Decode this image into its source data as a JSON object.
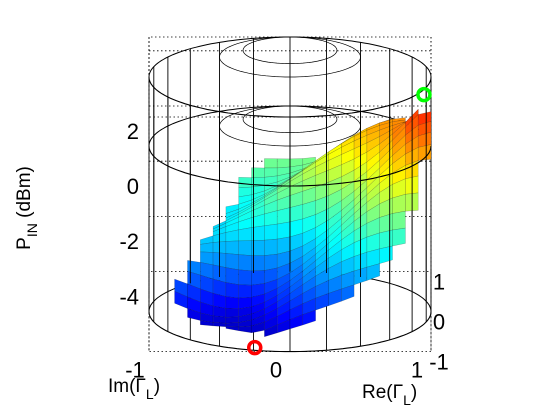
{
  "chart_data": {
    "type": "surface3d",
    "title": "",
    "zlabel": {
      "main": "P",
      "sub": "IN",
      "tail": "  (dBm)"
    },
    "xlabel": {
      "main": "Re(Γ",
      "sub": "L",
      "tail": ")"
    },
    "ylabel": {
      "main": "Im(Γ",
      "sub": "L",
      "tail": ")"
    },
    "zlim": [
      -6,
      2.5
    ],
    "xlim": [
      -1,
      1
    ],
    "ylim": [
      -1,
      1
    ],
    "ztick_labels": [
      "2",
      "0",
      "-2",
      "-4"
    ],
    "ztick_values": [
      2,
      0,
      -2,
      -4
    ],
    "xtick_labels": [
      "-1",
      "0",
      "1"
    ],
    "xtick_values": [
      -1,
      0,
      1
    ],
    "ytick_labels": [
      "1",
      "0",
      "-1"
    ],
    "ytick_values": [
      1,
      0,
      -1
    ],
    "grid": true,
    "colormap": "jet",
    "markers": [
      {
        "label": "",
        "color": "#ff0000",
        "re": -0.97,
        "im": 0.25,
        "p_in": -5.9
      },
      {
        "label": "",
        "color": "#00ff00",
        "re": 0.25,
        "im": -0.95,
        "p_in": 1.5
      }
    ]
  }
}
